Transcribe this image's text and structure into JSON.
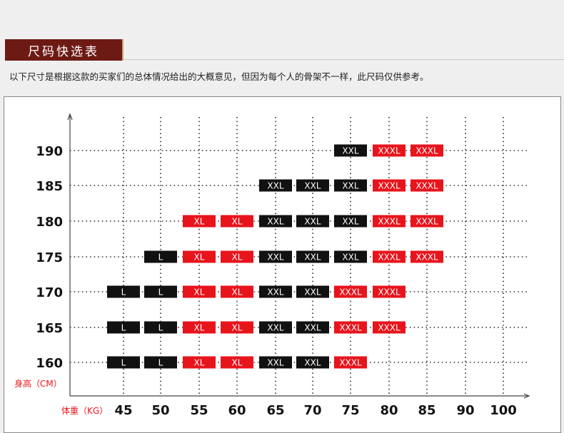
{
  "header": {
    "title": "尺码快选表",
    "description": "以下尺寸是根据这款的买家们的总体情况给出的大概意见，但因为每个人的骨架不一样，此尺码仅供参考。"
  },
  "colors": {
    "black_badge": "#111111",
    "red_badge": "#e8141c",
    "title_bg": "#6d1a14",
    "axis_label": "#e8141c"
  },
  "chart_data": {
    "type": "table",
    "ylabel": "身高（CM）",
    "xlabel": "体重（KG）",
    "x": [
      "45",
      "50",
      "55",
      "60",
      "65",
      "70",
      "75",
      "80",
      "85",
      "90",
      "100"
    ],
    "y": [
      "190",
      "185",
      "180",
      "175",
      "170",
      "165",
      "160"
    ],
    "cells": [
      {
        "height": "190",
        "weight": "75",
        "size": "XXL",
        "color": "black"
      },
      {
        "height": "190",
        "weight": "80",
        "size": "XXXL",
        "color": "red"
      },
      {
        "height": "190",
        "weight": "85",
        "size": "XXXL",
        "color": "red"
      },
      {
        "height": "185",
        "weight": "65",
        "size": "XXL",
        "color": "black"
      },
      {
        "height": "185",
        "weight": "70",
        "size": "XXL",
        "color": "black"
      },
      {
        "height": "185",
        "weight": "75",
        "size": "XXL",
        "color": "black"
      },
      {
        "height": "185",
        "weight": "80",
        "size": "XXXL",
        "color": "red"
      },
      {
        "height": "185",
        "weight": "85",
        "size": "XXXL",
        "color": "red"
      },
      {
        "height": "180",
        "weight": "55",
        "size": "XL",
        "color": "red"
      },
      {
        "height": "180",
        "weight": "60",
        "size": "XL",
        "color": "red"
      },
      {
        "height": "180",
        "weight": "65",
        "size": "XXL",
        "color": "black"
      },
      {
        "height": "180",
        "weight": "70",
        "size": "XXL",
        "color": "black"
      },
      {
        "height": "180",
        "weight": "75",
        "size": "XXL",
        "color": "black"
      },
      {
        "height": "180",
        "weight": "80",
        "size": "XXXL",
        "color": "red"
      },
      {
        "height": "180",
        "weight": "85",
        "size": "XXXL",
        "color": "red"
      },
      {
        "height": "175",
        "weight": "50",
        "size": "L",
        "color": "black"
      },
      {
        "height": "175",
        "weight": "55",
        "size": "XL",
        "color": "red"
      },
      {
        "height": "175",
        "weight": "60",
        "size": "XL",
        "color": "red"
      },
      {
        "height": "175",
        "weight": "65",
        "size": "XXL",
        "color": "black"
      },
      {
        "height": "175",
        "weight": "70",
        "size": "XXL",
        "color": "black"
      },
      {
        "height": "175",
        "weight": "75",
        "size": "XXL",
        "color": "black"
      },
      {
        "height": "175",
        "weight": "80",
        "size": "XXXL",
        "color": "red"
      },
      {
        "height": "175",
        "weight": "85",
        "size": "XXXL",
        "color": "red"
      },
      {
        "height": "170",
        "weight": "45",
        "size": "L",
        "color": "black"
      },
      {
        "height": "170",
        "weight": "50",
        "size": "L",
        "color": "black"
      },
      {
        "height": "170",
        "weight": "55",
        "size": "XL",
        "color": "red"
      },
      {
        "height": "170",
        "weight": "60",
        "size": "XL",
        "color": "red"
      },
      {
        "height": "170",
        "weight": "65",
        "size": "XXL",
        "color": "black"
      },
      {
        "height": "170",
        "weight": "70",
        "size": "XXL",
        "color": "black"
      },
      {
        "height": "170",
        "weight": "75",
        "size": "XXXL",
        "color": "red"
      },
      {
        "height": "170",
        "weight": "80",
        "size": "XXXL",
        "color": "red"
      },
      {
        "height": "165",
        "weight": "45",
        "size": "L",
        "color": "black"
      },
      {
        "height": "165",
        "weight": "50",
        "size": "L",
        "color": "black"
      },
      {
        "height": "165",
        "weight": "55",
        "size": "XL",
        "color": "red"
      },
      {
        "height": "165",
        "weight": "60",
        "size": "XL",
        "color": "red"
      },
      {
        "height": "165",
        "weight": "65",
        "size": "XXL",
        "color": "black"
      },
      {
        "height": "165",
        "weight": "70",
        "size": "XXL",
        "color": "black"
      },
      {
        "height": "165",
        "weight": "75",
        "size": "XXXL",
        "color": "red"
      },
      {
        "height": "165",
        "weight": "80",
        "size": "XXXL",
        "color": "red"
      },
      {
        "height": "160",
        "weight": "45",
        "size": "L",
        "color": "black"
      },
      {
        "height": "160",
        "weight": "50",
        "size": "L",
        "color": "black"
      },
      {
        "height": "160",
        "weight": "55",
        "size": "XL",
        "color": "red"
      },
      {
        "height": "160",
        "weight": "60",
        "size": "XL",
        "color": "red"
      },
      {
        "height": "160",
        "weight": "65",
        "size": "XXL",
        "color": "black"
      },
      {
        "height": "160",
        "weight": "70",
        "size": "XXL",
        "color": "black"
      },
      {
        "height": "160",
        "weight": "75",
        "size": "XXXL",
        "color": "red"
      }
    ]
  }
}
